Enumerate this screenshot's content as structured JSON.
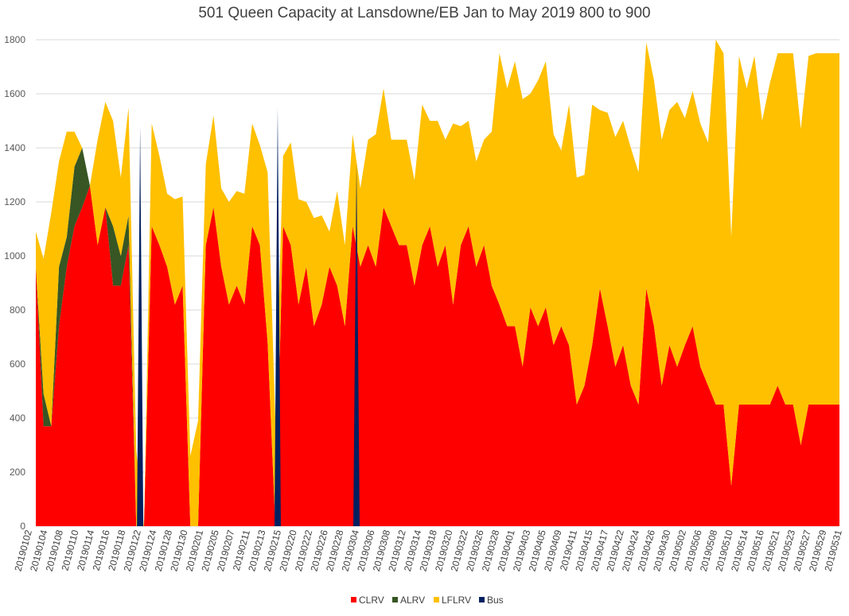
{
  "chart_data": {
    "type": "area",
    "stacked": true,
    "title": "501 Queen Capacity at Lansdowne/EB Jan to May 2019 800 to 900",
    "xlabel": "",
    "ylabel": "",
    "ylim": [
      0,
      1800
    ],
    "yticks": [
      0,
      200,
      400,
      600,
      800,
      1000,
      1200,
      1400,
      1600,
      1800
    ],
    "grid": true,
    "legend": "bottom",
    "x_tick_labels": [
      "20190102",
      "20190104",
      "20190108",
      "20190110",
      "20190114",
      "20190116",
      "20190118",
      "20190122",
      "20190124",
      "20190128",
      "20190130",
      "20190201",
      "20190205",
      "20190207",
      "20190211",
      "20190213",
      "20190215",
      "20190220",
      "20190222",
      "20190226",
      "20190228",
      "20190304",
      "20190306",
      "20190308",
      "20190312",
      "20190314",
      "20190318",
      "20190320",
      "20190322",
      "20190326",
      "20190328",
      "20190401",
      "20190403",
      "20190405",
      "20190409",
      "20190411",
      "20190415",
      "20190417",
      "20190422",
      "20190424",
      "20190426",
      "20190430",
      "20190502",
      "20190506",
      "20190508",
      "20190510",
      "20190514",
      "20190516",
      "20190521",
      "20190523",
      "20190527",
      "20190529",
      "20190531"
    ],
    "n_points": 105,
    "series": [
      {
        "name": "CLRV",
        "color": "#ff0000",
        "values": [
          960,
          370,
          370,
          740,
          960,
          1110,
          1180,
          1260,
          1040,
          1180,
          890,
          890,
          1040,
          0,
          0,
          1110,
          1040,
          960,
          820,
          890,
          0,
          0,
          1040,
          1180,
          960,
          820,
          890,
          820,
          1110,
          1040,
          680,
          0,
          1110,
          1040,
          820,
          960,
          740,
          820,
          960,
          890,
          740,
          1110,
          960,
          1040,
          960,
          1180,
          1110,
          1040,
          1040,
          890,
          1040,
          1110,
          960,
          1040,
          820,
          1040,
          1110,
          960,
          1040,
          890,
          820,
          740,
          740,
          590,
          810,
          740,
          810,
          670,
          740,
          670,
          450,
          520,
          670,
          880,
          740,
          590,
          670,
          520,
          450,
          880,
          740,
          520,
          670,
          590,
          670,
          740,
          590,
          520,
          450,
          450,
          150,
          450,
          450,
          450,
          450,
          450,
          520,
          450,
          450,
          300,
          450,
          450,
          450,
          450,
          450
        ]
      },
      {
        "name": "ALRV",
        "color": "#375623",
        "values": [
          0,
          120,
          0,
          220,
          110,
          220,
          220,
          0,
          0,
          0,
          220,
          110,
          110,
          0,
          0,
          0,
          0,
          0,
          0,
          0,
          0,
          0,
          0,
          0,
          0,
          0,
          0,
          0,
          0,
          0,
          0,
          0,
          0,
          0,
          0,
          0,
          0,
          0,
          0,
          0,
          0,
          0,
          0,
          0,
          0,
          0,
          0,
          0,
          0,
          0,
          0,
          0,
          0,
          0,
          0,
          0,
          0,
          0,
          0,
          0,
          0,
          0,
          0,
          0,
          0,
          0,
          0,
          0,
          0,
          0,
          0,
          0,
          0,
          0,
          0,
          0,
          0,
          0,
          0,
          0,
          0,
          0,
          0,
          0,
          0,
          0,
          0,
          0,
          0,
          0,
          0,
          0,
          0,
          0,
          0,
          0,
          0,
          0,
          0,
          0,
          0,
          0,
          0,
          0,
          0
        ]
      },
      {
        "name": "LFLRV",
        "color": "#ffc000",
        "values": [
          130,
          500,
          790,
          390,
          390,
          130,
          0,
          0,
          390,
          390,
          390,
          290,
          400,
          280,
          0,
          380,
          330,
          270,
          390,
          330,
          260,
          390,
          300,
          340,
          290,
          380,
          350,
          410,
          380,
          370,
          630,
          390,
          260,
          380,
          390,
          240,
          400,
          330,
          130,
          350,
          300,
          340,
          290,
          390,
          490,
          440,
          320,
          390,
          390,
          390,
          520,
          390,
          540,
          390,
          670,
          440,
          390,
          390,
          390,
          570,
          930,
          880,
          980,
          990,
          790,
          910,
          910,
          780,
          650,
          890,
          840,
          780,
          890,
          660,
          790,
          850,
          830,
          880,
          860,
          910,
          910,
          910,
          870,
          980,
          840,
          870,
          900,
          900,
          1350,
          1300,
          920,
          1290,
          1170,
          1290,
          1050,
          1190,
          1230,
          1300,
          1300,
          1170,
          1290,
          1300,
          1300,
          1300,
          1300
        ]
      },
      {
        "name": "Bus",
        "color": "#002060",
        "values": [
          0,
          0,
          0,
          0,
          0,
          0,
          0,
          0,
          0,
          0,
          0,
          0,
          0,
          0,
          0,
          0,
          0,
          0,
          0,
          0,
          0,
          0,
          0,
          0,
          0,
          0,
          0,
          0,
          0,
          0,
          0,
          0,
          0,
          0,
          0,
          0,
          0,
          0,
          0,
          0,
          0,
          0,
          0,
          0,
          0,
          0,
          0,
          0,
          0,
          0,
          0,
          0,
          0,
          0,
          0,
          0,
          0,
          0,
          0,
          0,
          0,
          0,
          0,
          0,
          0,
          0,
          0,
          0,
          0,
          0,
          0,
          0,
          0,
          0,
          0,
          0,
          0,
          0,
          0,
          0,
          0,
          0,
          0,
          0,
          0,
          0,
          0,
          0,
          0,
          0,
          0,
          0,
          0,
          0,
          0,
          0,
          0,
          0,
          0,
          0,
          0,
          0,
          0,
          0,
          0
        ]
      }
    ],
    "spikes": [
      {
        "series": "Bus",
        "index": 13.5,
        "top": 1480
      },
      {
        "series": "Bus",
        "index": 31.3,
        "top": 1550
      },
      {
        "series": "Bus",
        "index": 41.5,
        "top": 1350
      }
    ]
  }
}
